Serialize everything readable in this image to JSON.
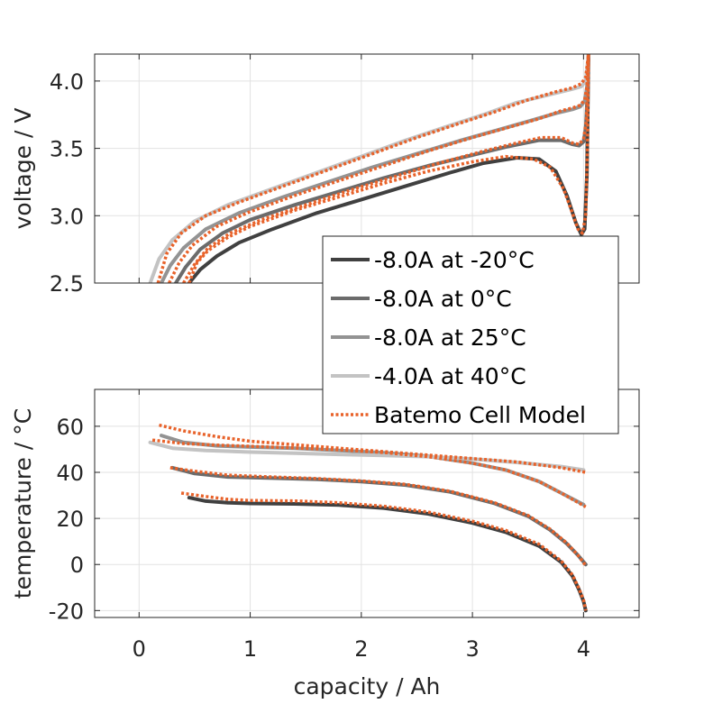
{
  "chart_data": [
    {
      "type": "line",
      "ylabel": "voltage / V",
      "xlabel": "",
      "xlim": [
        -0.4,
        4.5
      ],
      "ylim": [
        2.5,
        4.2
      ],
      "xticks": [
        0,
        1,
        2,
        3,
        4
      ],
      "yticks": [
        2.5,
        3.0,
        3.5,
        4.0
      ],
      "ytick_labels": [
        "2.5",
        "3.0",
        "3.5",
        "4.0"
      ],
      "show_xtick_labels": false,
      "grid": true,
      "series": [
        {
          "name": "-8.0A at -20°C",
          "color": "#404040",
          "x": [
            0.45,
            0.55,
            0.7,
            0.9,
            1.2,
            1.6,
            2.0,
            2.4,
            2.8,
            3.1,
            3.4,
            3.6,
            3.75,
            3.85,
            3.93,
            3.98,
            4.01,
            4.03,
            4.04,
            4.045
          ],
          "y": [
            2.5,
            2.6,
            2.7,
            2.8,
            2.9,
            3.02,
            3.12,
            3.22,
            3.32,
            3.39,
            3.43,
            3.42,
            3.33,
            3.15,
            2.95,
            2.86,
            2.9,
            3.3,
            3.9,
            4.2
          ]
        },
        {
          "name": "-8.0A at 0°C",
          "color": "#6b6b6b",
          "x": [
            0.33,
            0.42,
            0.55,
            0.75,
            1.0,
            1.4,
            1.8,
            2.2,
            2.6,
            3.0,
            3.3,
            3.6,
            3.8,
            3.9,
            3.96,
            4.0,
            4.02,
            4.035,
            4.045
          ],
          "y": [
            2.5,
            2.62,
            2.75,
            2.87,
            2.97,
            3.08,
            3.18,
            3.28,
            3.37,
            3.45,
            3.51,
            3.56,
            3.56,
            3.53,
            3.52,
            3.55,
            3.65,
            3.9,
            4.2
          ]
        },
        {
          "name": "-8.0A at 25°C",
          "color": "#939393",
          "x": [
            0.2,
            0.28,
            0.4,
            0.6,
            0.9,
            1.3,
            1.7,
            2.1,
            2.5,
            2.9,
            3.2,
            3.5,
            3.75,
            3.9,
            3.97,
            4.01,
            4.03,
            4.045
          ],
          "y": [
            2.5,
            2.63,
            2.76,
            2.9,
            3.02,
            3.14,
            3.25,
            3.36,
            3.46,
            3.56,
            3.63,
            3.7,
            3.76,
            3.79,
            3.81,
            3.85,
            3.95,
            4.2
          ]
        },
        {
          "name": "-4.0A at 40°C",
          "color": "#c3c3c3",
          "x": [
            0.1,
            0.18,
            0.3,
            0.5,
            0.8,
            1.2,
            1.6,
            2.0,
            2.4,
            2.8,
            3.1,
            3.4,
            3.7,
            3.9,
            3.98,
            4.02,
            4.045
          ],
          "y": [
            2.5,
            2.68,
            2.82,
            2.96,
            3.08,
            3.2,
            3.32,
            3.44,
            3.56,
            3.67,
            3.75,
            3.84,
            3.9,
            3.94,
            3.96,
            4.0,
            4.2
          ]
        },
        {
          "name": "Batemo Cell Model",
          "color": "#e8622a",
          "dashed": true,
          "x": [
            0.17,
            0.25,
            0.38,
            0.6,
            0.9,
            1.3,
            1.7,
            2.1,
            2.5,
            2.9,
            3.2,
            3.5,
            3.75,
            3.9,
            3.98,
            4.02,
            4.045
          ],
          "y": [
            2.5,
            2.72,
            2.87,
            3.0,
            3.1,
            3.22,
            3.34,
            3.46,
            3.58,
            3.69,
            3.77,
            3.86,
            3.92,
            3.95,
            3.98,
            4.03,
            4.2
          ]
        },
        {
          "name": "",
          "color": "#e8622a",
          "dashed": true,
          "x": [
            0.27,
            0.36,
            0.48,
            0.7,
            1.0,
            1.4,
            1.8,
            2.2,
            2.6,
            3.0,
            3.3,
            3.6,
            3.8,
            3.9,
            3.97,
            4.01,
            4.03,
            4.045
          ],
          "y": [
            2.5,
            2.65,
            2.78,
            2.92,
            3.03,
            3.15,
            3.26,
            3.37,
            3.48,
            3.58,
            3.65,
            3.72,
            3.78,
            3.8,
            3.82,
            3.86,
            3.96,
            4.2
          ]
        },
        {
          "name": "",
          "color": "#e8622a",
          "dashed": true,
          "x": [
            0.4,
            0.5,
            0.62,
            0.82,
            1.1,
            1.5,
            1.9,
            2.3,
            2.7,
            3.1,
            3.4,
            3.62,
            3.8,
            3.9,
            3.96,
            4.0,
            4.025,
            4.045
          ],
          "y": [
            2.5,
            2.64,
            2.76,
            2.87,
            2.97,
            3.08,
            3.19,
            3.29,
            3.39,
            3.48,
            3.54,
            3.58,
            3.58,
            3.54,
            3.53,
            3.57,
            3.7,
            4.2
          ]
        },
        {
          "name": "",
          "color": "#e8622a",
          "dashed": true,
          "x": [
            0.45,
            0.52,
            0.62,
            0.8,
            1.0,
            1.4,
            1.8,
            2.2,
            2.6,
            3.0,
            3.3,
            3.55,
            3.7,
            3.82,
            3.9,
            3.95,
            3.99,
            4.02,
            4.035,
            4.045
          ],
          "y": [
            2.5,
            2.65,
            2.74,
            2.84,
            2.92,
            3.04,
            3.14,
            3.24,
            3.33,
            3.4,
            3.44,
            3.42,
            3.36,
            3.2,
            3.02,
            2.9,
            2.87,
            3.0,
            3.5,
            4.2
          ]
        }
      ]
    },
    {
      "type": "line",
      "ylabel": "temperature / °C",
      "xlabel": "capacity / Ah",
      "xlim": [
        -0.4,
        4.5
      ],
      "ylim": [
        -23,
        76
      ],
      "xticks": [
        0,
        1,
        2,
        3,
        4
      ],
      "xtick_labels": [
        "0",
        "1",
        "2",
        "3",
        "4"
      ],
      "yticks": [
        -20,
        0,
        20,
        40,
        60
      ],
      "ytick_labels": [
        "-20",
        "0",
        "20",
        "40",
        "60"
      ],
      "grid": true,
      "series": [
        {
          "name": "-8.0A at -20°C",
          "color": "#404040",
          "x": [
            0.45,
            0.6,
            0.8,
            1.0,
            1.4,
            1.8,
            2.2,
            2.6,
            3.0,
            3.3,
            3.6,
            3.8,
            3.9,
            3.96,
            4.0,
            4.02
          ],
          "y": [
            29,
            27.5,
            26.8,
            26.5,
            26.3,
            25.8,
            24.5,
            22,
            18,
            14,
            8,
            1,
            -5,
            -11,
            -16,
            -20
          ]
        },
        {
          "name": "-8.0A at 0°C",
          "color": "#6b6b6b",
          "x": [
            0.3,
            0.5,
            0.8,
            1.2,
            1.6,
            2.0,
            2.4,
            2.8,
            3.2,
            3.5,
            3.7,
            3.85,
            3.95,
            4.02
          ],
          "y": [
            42,
            39.5,
            38,
            37.5,
            37,
            36,
            34.5,
            31.5,
            26.5,
            21,
            15,
            9,
            4,
            0
          ]
        },
        {
          "name": "-8.0A at 25°C",
          "color": "#939393",
          "x": [
            0.2,
            0.4,
            0.7,
            1.0,
            1.4,
            1.8,
            2.2,
            2.6,
            3.0,
            3.3,
            3.6,
            3.8,
            4.0
          ],
          "y": [
            56,
            53,
            51.5,
            51,
            50.5,
            49.5,
            48.5,
            47,
            44,
            41,
            36,
            31,
            26
          ]
        },
        {
          "name": "-4.0A at 40°C",
          "color": "#c3c3c3",
          "x": [
            0.1,
            0.3,
            0.6,
            1.0,
            1.4,
            1.8,
            2.2,
            2.6,
            3.0,
            3.4,
            3.8,
            4.0
          ],
          "y": [
            53,
            50.5,
            49.5,
            48.8,
            48.3,
            47.8,
            47.3,
            46.8,
            45.8,
            44.3,
            42.5,
            41
          ]
        },
        {
          "name": "Batemo Cell Model",
          "color": "#e8622a",
          "dashed": true,
          "x": [
            0.18,
            0.4,
            0.7,
            1.0,
            1.4,
            1.8,
            2.2,
            2.6,
            3.0,
            3.4,
            3.8,
            4.02
          ],
          "y": [
            60.5,
            58,
            55.5,
            53.5,
            52,
            50.5,
            49,
            47.5,
            46,
            44.5,
            42,
            40
          ]
        },
        {
          "name": "",
          "color": "#e8622a",
          "dashed": true,
          "x": [
            0.12,
            0.4,
            0.7,
            1.0,
            1.4,
            1.8,
            2.2,
            2.6,
            3.0,
            3.3,
            3.6,
            3.8,
            4.02
          ],
          "y": [
            54,
            52.5,
            51.8,
            51.3,
            50.6,
            49.8,
            48.6,
            46.8,
            44,
            41,
            36,
            31,
            25
          ]
        },
        {
          "name": "",
          "color": "#e8622a",
          "dashed": true,
          "x": [
            0.28,
            0.5,
            0.8,
            1.2,
            1.6,
            2.0,
            2.4,
            2.8,
            3.2,
            3.5,
            3.7,
            3.85,
            3.95,
            4.02
          ],
          "y": [
            42,
            40.5,
            38.8,
            38,
            37.3,
            36.3,
            34.8,
            31.8,
            26.8,
            21.3,
            15.3,
            9.3,
            4,
            -0.5
          ]
        },
        {
          "name": "",
          "color": "#e8622a",
          "dashed": true,
          "x": [
            0.38,
            0.6,
            0.8,
            1.0,
            1.4,
            1.8,
            2.2,
            2.6,
            3.0,
            3.3,
            3.6,
            3.8,
            3.9,
            3.96,
            4.0,
            4.02
          ],
          "y": [
            31,
            29.5,
            28.3,
            27.8,
            27.6,
            26.8,
            25.3,
            22.8,
            18.8,
            14.8,
            8.8,
            1.5,
            -4.5,
            -10.5,
            -15.5,
            -20
          ]
        }
      ]
    }
  ],
  "legend": {
    "placement": "east",
    "entries": [
      {
        "label": "-8.0A at -20°C",
        "color": "#404040",
        "dashed": false
      },
      {
        "label": "-8.0A at 0°C",
        "color": "#6b6b6b",
        "dashed": false
      },
      {
        "label": "-8.0A at 25°C",
        "color": "#939393",
        "dashed": false
      },
      {
        "label": "-4.0A at 40°C",
        "color": "#c3c3c3",
        "dashed": false
      },
      {
        "label": "Batemo Cell Model",
        "color": "#e8622a",
        "dashed": true
      }
    ]
  }
}
